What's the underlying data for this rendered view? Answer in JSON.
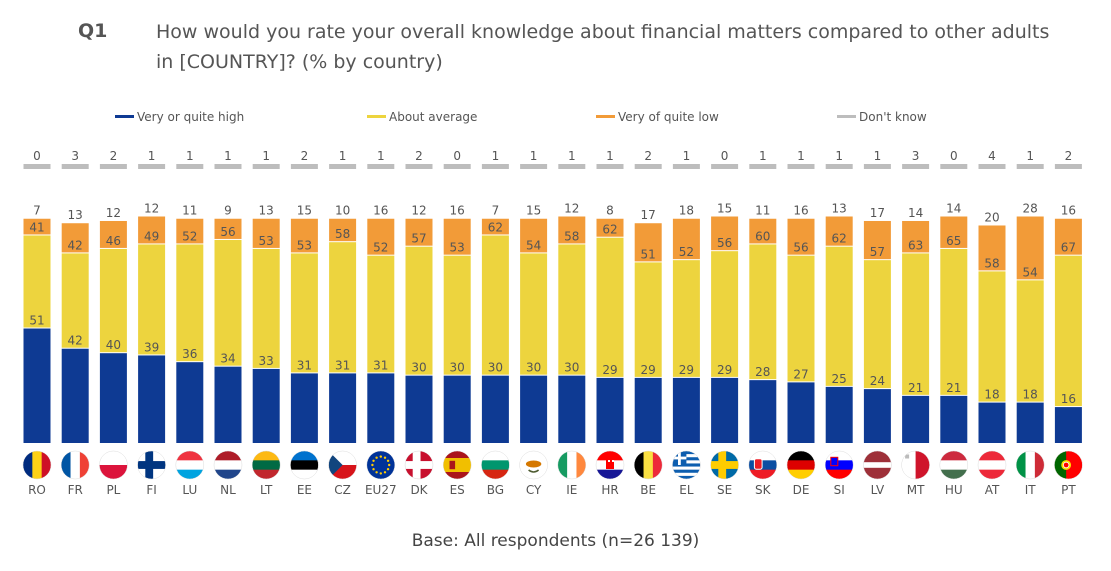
{
  "question": {
    "number": "Q1",
    "text": "How would you rate your overall knowledge about financial matters compared to other adults in [COUNTRY]? (% by country)"
  },
  "base_note": "Base: All respondents (n=26 139)",
  "chart_data": {
    "type": "bar",
    "stacked": true,
    "categories": [
      "RO",
      "FR",
      "PL",
      "FI",
      "LU",
      "NL",
      "LT",
      "EE",
      "CZ",
      "EU27",
      "DK",
      "ES",
      "BG",
      "CY",
      "IE",
      "HR",
      "BE",
      "EL",
      "SE",
      "SK",
      "DE",
      "SI",
      "LV",
      "MT",
      "HU",
      "AT",
      "IT",
      "PT"
    ],
    "series": [
      {
        "name": "Very or quite high",
        "color": "#0E3A93",
        "values": [
          51,
          42,
          40,
          39,
          36,
          34,
          33,
          31,
          31,
          31,
          30,
          30,
          30,
          30,
          30,
          29,
          29,
          29,
          29,
          28,
          27,
          25,
          24,
          21,
          21,
          18,
          18,
          16
        ]
      },
      {
        "name": "About average",
        "color": "#EDD43E",
        "values": [
          41,
          42,
          46,
          49,
          52,
          56,
          53,
          53,
          58,
          52,
          57,
          53,
          62,
          54,
          58,
          62,
          51,
          52,
          56,
          60,
          56,
          62,
          57,
          63,
          65,
          58,
          54,
          67
        ]
      },
      {
        "name": "Very of quite low",
        "color": "#F29B38",
        "values": [
          7,
          13,
          12,
          12,
          11,
          9,
          13,
          15,
          10,
          16,
          12,
          16,
          7,
          15,
          12,
          8,
          17,
          18,
          15,
          11,
          16,
          13,
          17,
          14,
          14,
          20,
          28,
          16
        ]
      },
      {
        "name": "Don't know",
        "color": "#BDBDBD",
        "values": [
          0,
          3,
          2,
          1,
          1,
          1,
          1,
          2,
          1,
          1,
          2,
          0,
          1,
          1,
          1,
          1,
          2,
          1,
          0,
          1,
          1,
          1,
          1,
          3,
          0,
          4,
          1,
          2
        ]
      }
    ],
    "ylim": [
      0,
      100
    ],
    "legend_position": "top",
    "flags": [
      "flag-romania",
      "flag-france",
      "flag-poland",
      "flag-finland",
      "flag-luxembourg",
      "flag-netherlands",
      "flag-lithuania",
      "flag-estonia",
      "flag-czechia",
      "flag-eu",
      "flag-denmark",
      "flag-spain",
      "flag-bulgaria",
      "flag-cyprus",
      "flag-ireland",
      "flag-croatia",
      "flag-belgium",
      "flag-greece",
      "flag-sweden",
      "flag-slovakia",
      "flag-germany",
      "flag-slovenia",
      "flag-latvia",
      "flag-malta",
      "flag-hungary",
      "flag-austria",
      "flag-italy",
      "flag-portugal"
    ]
  }
}
